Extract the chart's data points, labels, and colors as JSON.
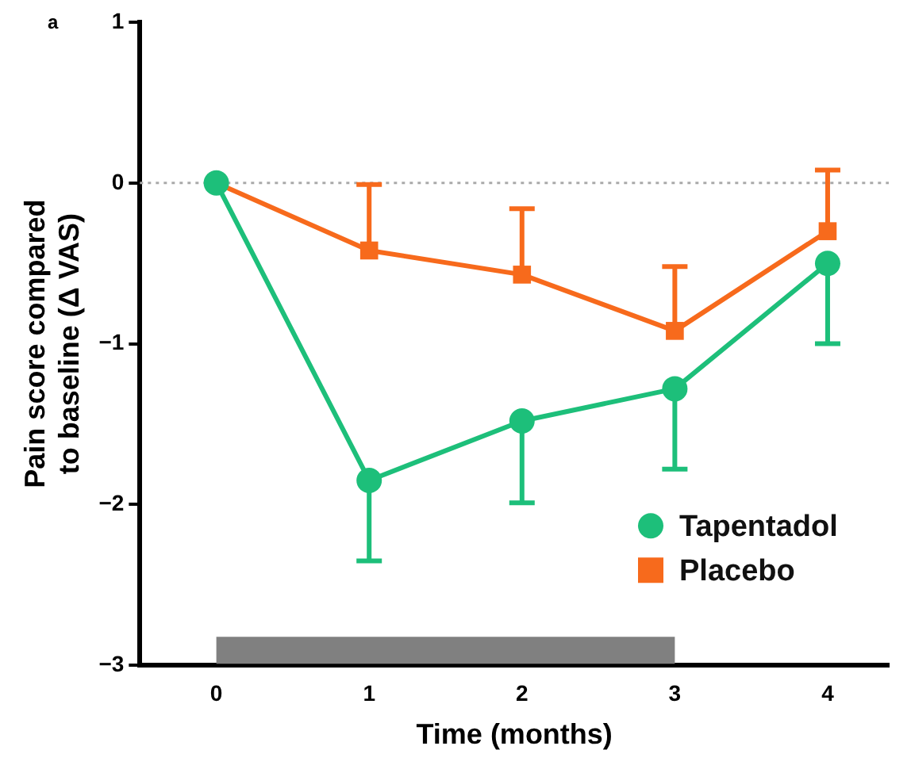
{
  "chart_data": {
    "type": "line",
    "xlabel": "Time (months)",
    "ylabel": "Pain score compared\nto baseline (Δ VAS)",
    "x": [
      0,
      1,
      2,
      3,
      4
    ],
    "series": [
      {
        "name": "Tapentadol",
        "color": "#1dbf7a",
        "marker": "circle",
        "values": [
          0,
          -1.85,
          -1.48,
          -1.28,
          -0.5
        ],
        "errors": [
          null,
          [
            -2.35,
            -1.85
          ],
          [
            -1.99,
            -1.48
          ],
          [
            -1.78,
            -1.28
          ],
          [
            -1.0,
            -0.5
          ]
        ]
      },
      {
        "name": "Placebo",
        "color": "#f76a1c",
        "marker": "square",
        "values": [
          0,
          -0.42,
          -0.57,
          -0.92,
          -0.3
        ],
        "errors": [
          null,
          [
            -0.42,
            -0.01
          ],
          [
            -0.57,
            -0.16
          ],
          [
            -0.92,
            -0.52
          ],
          [
            -0.3,
            0.08
          ]
        ]
      }
    ],
    "xlim": [
      -0.5,
      4.4
    ],
    "xticks": [
      0,
      1,
      2,
      3,
      4
    ],
    "ylim": [
      -3,
      1
    ],
    "yticks": [
      -3,
      -2,
      -1,
      0,
      1
    ],
    "grid": false,
    "legend": "bottom right",
    "ref_lines": [
      {
        "axis": "y",
        "value": 0,
        "color": "#aaaaaa",
        "line_style": "dotted"
      }
    ],
    "bands": [
      {
        "axis": "x",
        "from": 0,
        "to": 3,
        "color": "#808080"
      }
    ],
    "annotations": [
      "a"
    ]
  }
}
